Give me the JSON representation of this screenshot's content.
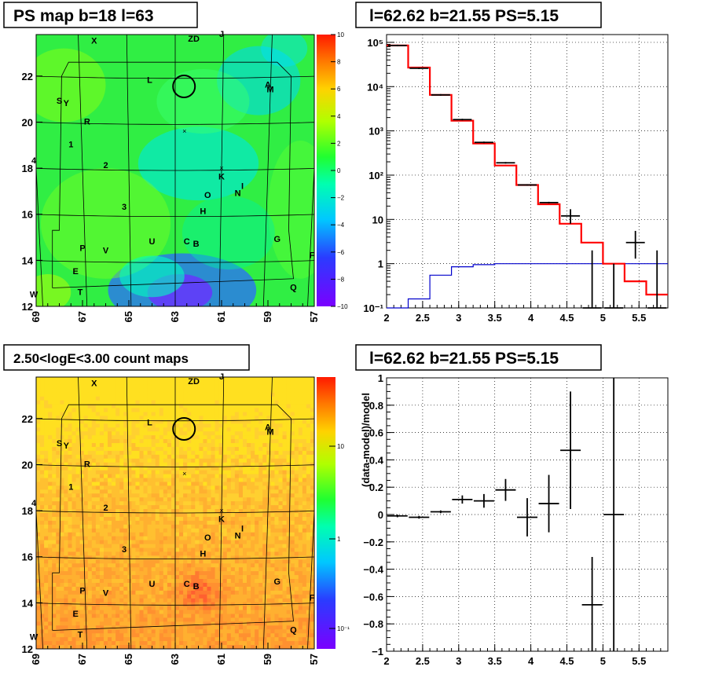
{
  "chart_data": [
    {
      "type": "heatmap",
      "title": "PS map b=18 l=63",
      "x_ticks": [
        "69",
        "67",
        "65",
        "63",
        "61",
        "59",
        "57"
      ],
      "y_ticks": [
        "12",
        "14",
        "16",
        "18",
        "20",
        "22"
      ],
      "xlim": [
        69.0,
        57.0
      ],
      "ylim": [
        12.0,
        23.8
      ],
      "colorbar": {
        "ticks": [
          "10",
          "8",
          "6",
          "4",
          "2",
          "0",
          "−2",
          "−4",
          "−6",
          "−8",
          "−10"
        ],
        "range": [
          -10,
          10
        ]
      },
      "sources": [
        {
          "label": "X",
          "l": 66.5,
          "b": 23.4
        },
        {
          "label": "ZD",
          "l": 62.2,
          "b": 23.5
        },
        {
          "label": "J",
          "l": 61.0,
          "b": 23.7
        },
        {
          "label": "L",
          "l": 64.1,
          "b": 21.7
        },
        {
          "label": "A",
          "l": 59.0,
          "b": 21.5
        },
        {
          "label": "M",
          "l": 58.9,
          "b": 21.3
        },
        {
          "label": "S",
          "l": 68.0,
          "b": 20.8
        },
        {
          "label": "Y",
          "l": 67.7,
          "b": 20.7
        },
        {
          "label": "R",
          "l": 66.8,
          "b": 19.9
        },
        {
          "label": "1",
          "l": 67.5,
          "b": 18.9
        },
        {
          "label": "4",
          "l": 69.1,
          "b": 18.2
        },
        {
          "label": "2",
          "l": 66.0,
          "b": 18.0
        },
        {
          "label": "K",
          "l": 61.0,
          "b": 17.5
        },
        {
          "label": "I",
          "l": 60.1,
          "b": 17.1
        },
        {
          "label": "O",
          "l": 61.6,
          "b": 16.7
        },
        {
          "label": "N",
          "l": 60.3,
          "b": 16.8
        },
        {
          "label": "3",
          "l": 65.2,
          "b": 16.2
        },
        {
          "label": "H",
          "l": 61.8,
          "b": 16.0
        },
        {
          "label": "G",
          "l": 58.6,
          "b": 14.8
        },
        {
          "label": "U",
          "l": 64.0,
          "b": 14.7
        },
        {
          "label": "C",
          "l": 62.5,
          "b": 14.7
        },
        {
          "label": "B",
          "l": 62.1,
          "b": 14.6
        },
        {
          "label": "P",
          "l": 67.0,
          "b": 14.4
        },
        {
          "label": "V",
          "l": 66.0,
          "b": 14.3
        },
        {
          "label": "F",
          "l": 57.1,
          "b": 14.1
        },
        {
          "label": "E",
          "l": 67.3,
          "b": 13.4
        },
        {
          "label": "Q",
          "l": 57.9,
          "b": 12.7
        },
        {
          "label": "T",
          "l": 67.1,
          "b": 12.5
        },
        {
          "label": "W",
          "l": 69.1,
          "b": 12.4
        }
      ],
      "circle": {
        "l": 62.62,
        "b": 21.55
      }
    },
    {
      "type": "line",
      "title": "l=62.62 b=21.55 PS=5.15",
      "x_ticks": [
        "2",
        "2.5",
        "3",
        "3.5",
        "4",
        "4.5",
        "5",
        "5.5"
      ],
      "y_scale": "log",
      "y_ticks": [
        "10⁻¹",
        "1",
        "10",
        "10²",
        "10³",
        "10⁴",
        "10⁵"
      ],
      "xlim": [
        2.0,
        5.9
      ],
      "ylim": [
        0.1,
        150000
      ],
      "grid": true,
      "model_step": {
        "edges": [
          2.0,
          2.3,
          2.6,
          2.9,
          3.2,
          3.5,
          3.8,
          4.1,
          4.4,
          4.7,
          5.0,
          5.3,
          5.6,
          5.9
        ],
        "values": [
          85000,
          27000,
          6500,
          1700,
          520,
          165,
          60,
          22,
          8,
          3,
          1,
          0.4,
          0.2
        ]
      },
      "background_step": {
        "edges": [
          2.0,
          2.3,
          2.6,
          2.9,
          3.2,
          3.5,
          3.8,
          4.1,
          4.4,
          4.7,
          5.0,
          5.3,
          5.6,
          5.9
        ],
        "values": [
          0.1,
          0.16,
          0.55,
          0.85,
          0.95,
          1.0,
          1.0,
          1.0,
          1.0,
          1.0,
          1.0,
          1.0,
          1.0
        ]
      },
      "data_points": [
        {
          "x": 2.15,
          "y": 85000
        },
        {
          "x": 2.45,
          "y": 26000
        },
        {
          "x": 2.75,
          "y": 6500
        },
        {
          "x": 3.05,
          "y": 1800
        },
        {
          "x": 3.35,
          "y": 550
        },
        {
          "x": 3.65,
          "y": 190
        },
        {
          "x": 3.95,
          "y": 60
        },
        {
          "x": 4.25,
          "y": 24
        },
        {
          "x": 4.55,
          "y": 12,
          "ylo": 8,
          "yhi": 17
        },
        {
          "x": 4.85,
          "y": 0.1,
          "yhi": 2
        },
        {
          "x": 5.15,
          "y": 0.1,
          "yhi": 1
        },
        {
          "x": 5.45,
          "y": 3,
          "ylo": 1.3,
          "yhi": 5.5
        },
        {
          "x": 5.75,
          "y": 0.1,
          "yhi": 2
        }
      ]
    },
    {
      "type": "heatmap",
      "title": "2.50<logE<3.00 count maps",
      "x_ticks": [
        "69",
        "67",
        "65",
        "63",
        "61",
        "59",
        "57"
      ],
      "y_ticks": [
        "12",
        "14",
        "16",
        "18",
        "20",
        "22"
      ],
      "xlim": [
        69.0,
        57.0
      ],
      "ylim": [
        12.0,
        23.8
      ],
      "colorbar": {
        "ticks": [
          "10",
          "1",
          "10⁻¹"
        ],
        "scale": "log"
      }
    },
    {
      "type": "scatter",
      "title": "l=62.62 b=21.55 PS=5.15",
      "ylabel": "(data-model)/model",
      "x_ticks": [
        "2",
        "2.5",
        "3",
        "3.5",
        "4",
        "4.5",
        "5",
        "5.5"
      ],
      "y_ticks": [
        "−1",
        "−0.8",
        "−0.6",
        "−0.4",
        "−0.2",
        "0",
        "0.2",
        "0.4",
        "0.6",
        "0.8",
        "1"
      ],
      "xlim": [
        2.0,
        5.9
      ],
      "ylim": [
        -1.0,
        1.0
      ],
      "grid": true,
      "points": [
        {
          "x": 2.15,
          "y": -0.01,
          "err": 0.01
        },
        {
          "x": 2.45,
          "y": -0.02,
          "err": 0.01
        },
        {
          "x": 2.75,
          "y": 0.02,
          "err": 0.01
        },
        {
          "x": 3.05,
          "y": 0.11,
          "err": 0.03
        },
        {
          "x": 3.35,
          "y": 0.1,
          "err": 0.05
        },
        {
          "x": 3.65,
          "y": 0.18,
          "err": 0.08
        },
        {
          "x": 3.95,
          "y": -0.02,
          "err": 0.14
        },
        {
          "x": 4.25,
          "y": 0.08,
          "err": 0.21
        },
        {
          "x": 4.55,
          "y": 0.47,
          "err": 0.43
        },
        {
          "x": 4.85,
          "y": -0.66,
          "err": 0.35
        },
        {
          "x": 5.15,
          "y": 0.0,
          "err": 1.0
        }
      ]
    }
  ]
}
